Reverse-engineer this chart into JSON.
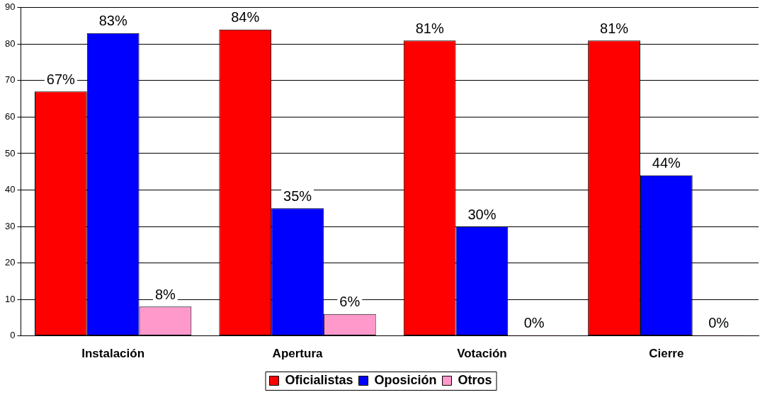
{
  "chart_data": {
    "type": "bar",
    "categories": [
      "Instalación",
      "Apertura",
      "Votación",
      "Cierre"
    ],
    "series": [
      {
        "name": "Oficialistas",
        "color": "#ff0000",
        "values": [
          67,
          84,
          81,
          81
        ],
        "value_labels": [
          "67%",
          "84%",
          "81%",
          "81%"
        ]
      },
      {
        "name": "Oposición",
        "color": "#0000ff",
        "values": [
          83,
          35,
          30,
          44
        ],
        "value_labels": [
          "83%",
          "35%",
          "30%",
          "44%"
        ]
      },
      {
        "name": "Otros",
        "color": "#ff99cc",
        "values": [
          8,
          6,
          0,
          0
        ],
        "value_labels": [
          "8%",
          "6%",
          "0%",
          "0%"
        ]
      }
    ],
    "ylim": [
      0,
      90
    ],
    "yticks": [
      0,
      10,
      20,
      30,
      40,
      50,
      60,
      70,
      80,
      90
    ],
    "grid": "y",
    "legend": "bottom"
  }
}
